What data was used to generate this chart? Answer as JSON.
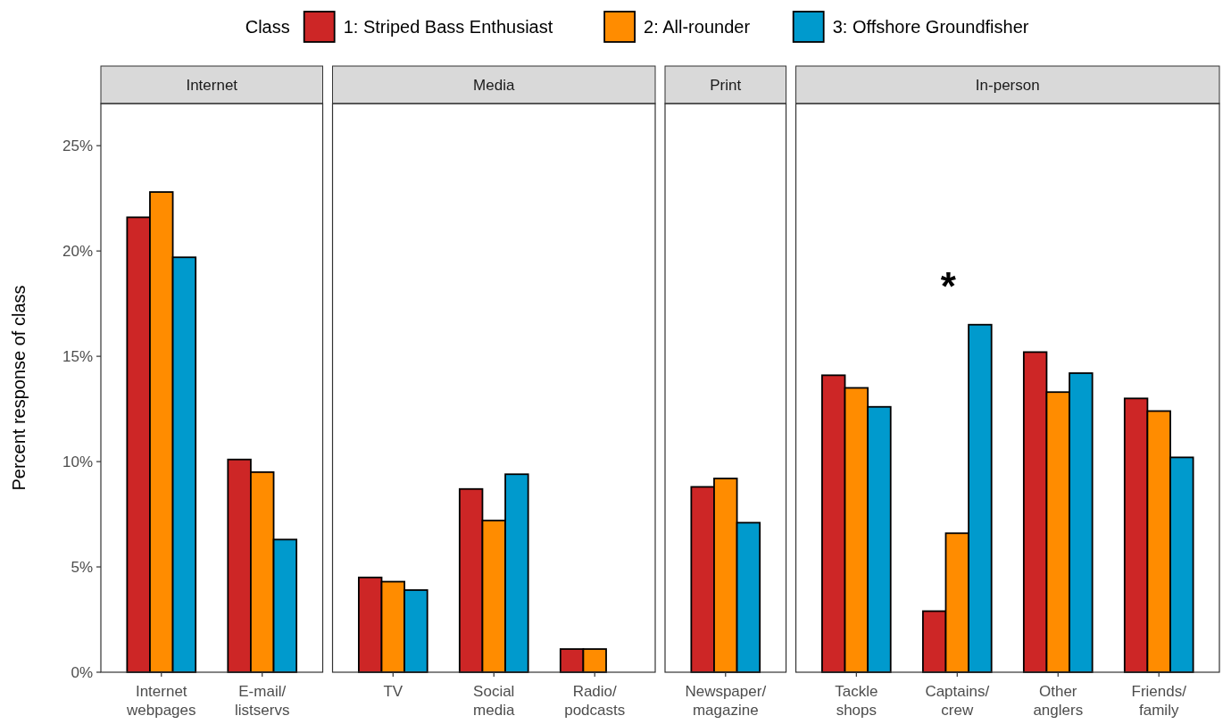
{
  "chart_data": [
    {
      "type": "bar",
      "title": "Internet",
      "ylabel": "Percent response of class",
      "legend_title": "Class",
      "legend": "top",
      "categories": [
        "Internet\nwebpages",
        "E-mail/\nlistservs"
      ],
      "ylim": [
        0,
        27
      ],
      "yticks": [
        {
          "value": 0,
          "label": "0%"
        },
        {
          "value": 5,
          "label": "5%"
        },
        {
          "value": 10,
          "label": "10%"
        },
        {
          "value": 15,
          "label": "15%"
        },
        {
          "value": 20,
          "label": "20%"
        },
        {
          "value": 25,
          "label": "25%"
        }
      ],
      "series": [
        {
          "name": "1: Striped Bass Enthusiast",
          "color": "#cd2626",
          "values": [
            21.6,
            10.1
          ]
        },
        {
          "name": "2: All-rounder",
          "color": "#ff8c00",
          "values": [
            22.8,
            9.5
          ]
        },
        {
          "name": "3: Offshore Groundfisher",
          "color": "#009acd",
          "values": [
            19.7,
            6.3
          ]
        }
      ]
    },
    {
      "type": "bar",
      "title": "Media",
      "tick_labels": "x",
      "categories": [
        "TV",
        "Social\nmedia",
        "Radio/\npodcasts"
      ],
      "ylim": [
        0,
        27
      ],
      "series": [
        {
          "color": "#cd2626",
          "values": [
            4.5,
            8.7,
            1.1
          ]
        },
        {
          "color": "#ff8c00",
          "values": [
            4.3,
            7.2,
            1.1
          ]
        },
        {
          "color": "#009acd",
          "values": [
            3.9,
            9.4,
            0
          ]
        }
      ]
    },
    {
      "type": "bar",
      "title": "Print",
      "tick_labels": "x",
      "categories": [
        "Newspaper/\nmagazine"
      ],
      "ylim": [
        0,
        27
      ],
      "series": [
        {
          "color": "#cd2626",
          "values": [
            8.8
          ]
        },
        {
          "color": "#ff8c00",
          "values": [
            9.2
          ]
        },
        {
          "color": "#009acd",
          "values": [
            7.1
          ]
        }
      ]
    },
    {
      "type": "bar",
      "title": "In-person",
      "tick_labels": "x",
      "categories": [
        "Tackle\nshops",
        "Captains/\ncrew",
        "Other\nanglers",
        "Friends/\nfamily"
      ],
      "ylim": [
        0,
        27
      ],
      "annotations": [
        "*"
      ],
      "series": [
        {
          "color": "#cd2626",
          "values": [
            14.1,
            2.9,
            15.2,
            13.0
          ]
        },
        {
          "color": "#ff8c00",
          "values": [
            13.5,
            6.6,
            13.3,
            12.4
          ]
        },
        {
          "color": "#009acd",
          "values": [
            12.6,
            16.5,
            14.2,
            10.2
          ]
        }
      ]
    }
  ]
}
